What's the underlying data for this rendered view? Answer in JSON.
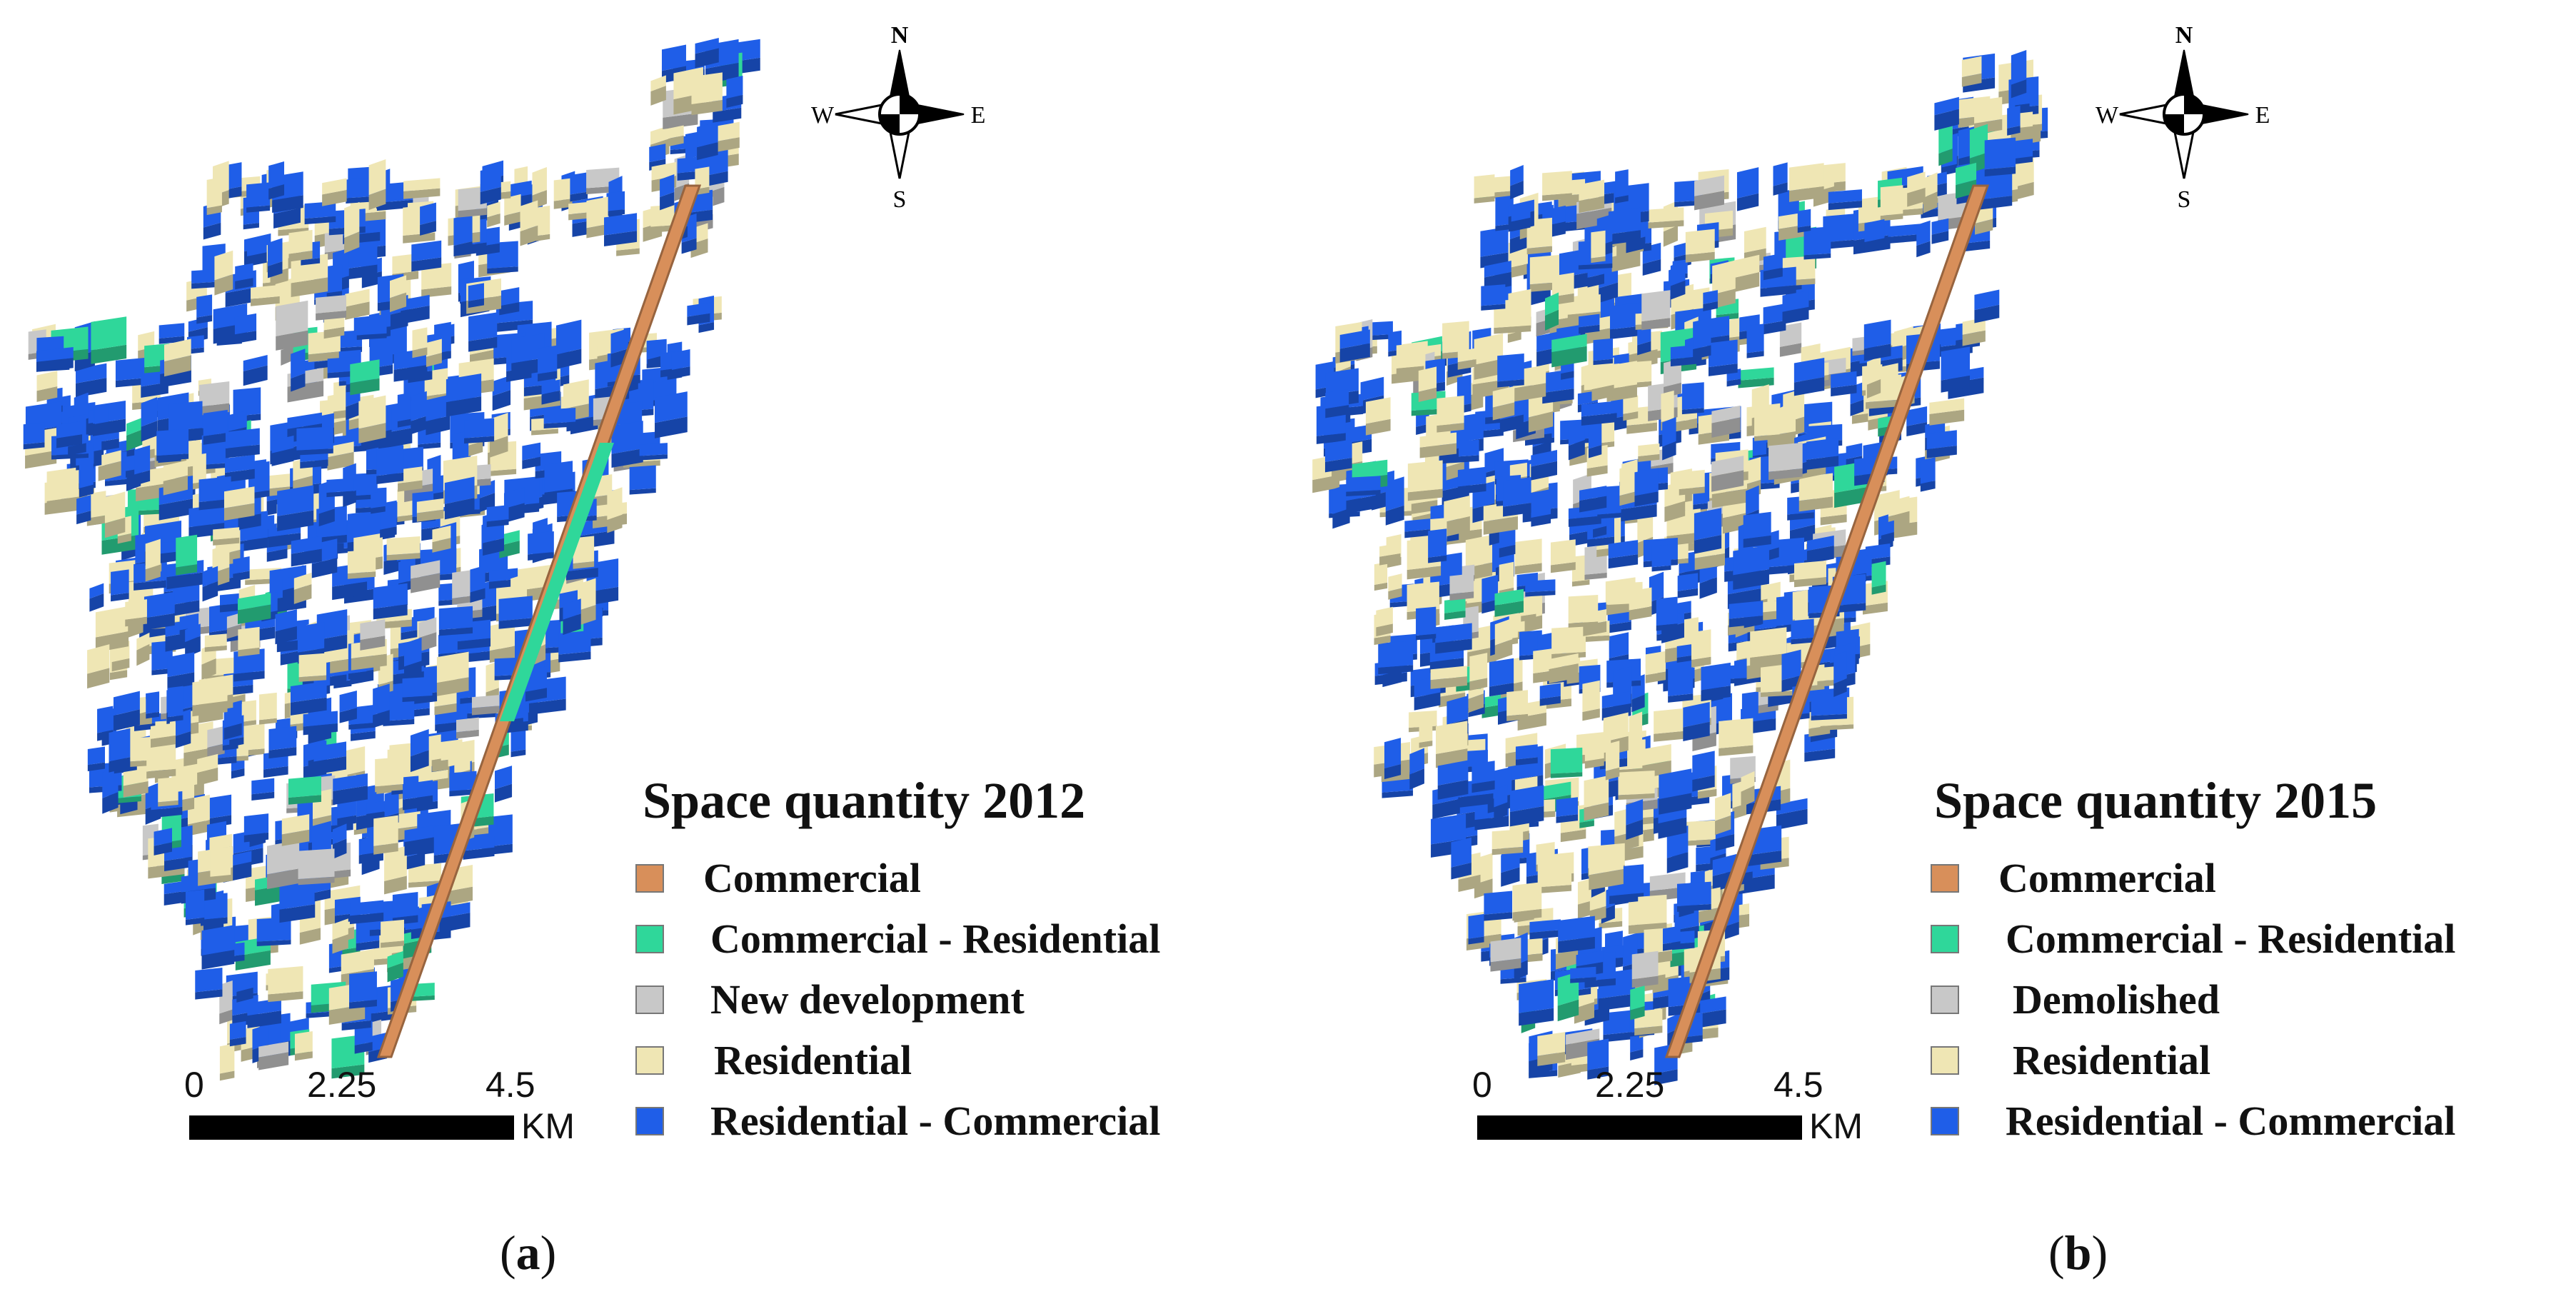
{
  "colors": {
    "commercial": "#d88f5a",
    "commercial_residential": "#2fd79a",
    "new_development": "#c8c8c8",
    "demolished": "#c8c8c8",
    "residential": "#efe6b4",
    "residential_commercial": "#1f5ee8"
  },
  "panels": [
    {
      "caption_open": "(",
      "caption_letter": "a",
      "caption_close": ")",
      "legend_title": "Space quantity 2012",
      "legend": [
        {
          "label": "Commercial",
          "color_key": "commercial"
        },
        {
          "label": "Commercial - Residential",
          "color_key": "commercial_residential"
        },
        {
          "label": "New development",
          "color_key": "new_development"
        },
        {
          "label": "Residential",
          "color_key": "residential"
        },
        {
          "label": "Residential - Commercial",
          "color_key": "residential_commercial"
        }
      ],
      "scale": {
        "ticks": [
          "0",
          "2.25",
          "4.5"
        ],
        "unit": "KM"
      },
      "compass": {
        "n": "N",
        "s": "S",
        "e": "E",
        "w": "W"
      }
    },
    {
      "caption_open": "(",
      "caption_letter": "b",
      "caption_close": ")",
      "legend_title": "Space quantity 2015",
      "legend": [
        {
          "label": "Commercial",
          "color_key": "commercial"
        },
        {
          "label": "Commercial - Residential",
          "color_key": "commercial_residential"
        },
        {
          "label": "Demolished",
          "color_key": "demolished"
        },
        {
          "label": "Residential",
          "color_key": "residential"
        },
        {
          "label": "Residential - Commercial",
          "color_key": "residential_commercial"
        }
      ],
      "scale": {
        "ticks": [
          "0",
          "2.25",
          "4.5"
        ],
        "unit": "KM"
      },
      "compass": {
        "n": "N",
        "s": "S",
        "e": "E",
        "w": "W"
      }
    }
  ]
}
